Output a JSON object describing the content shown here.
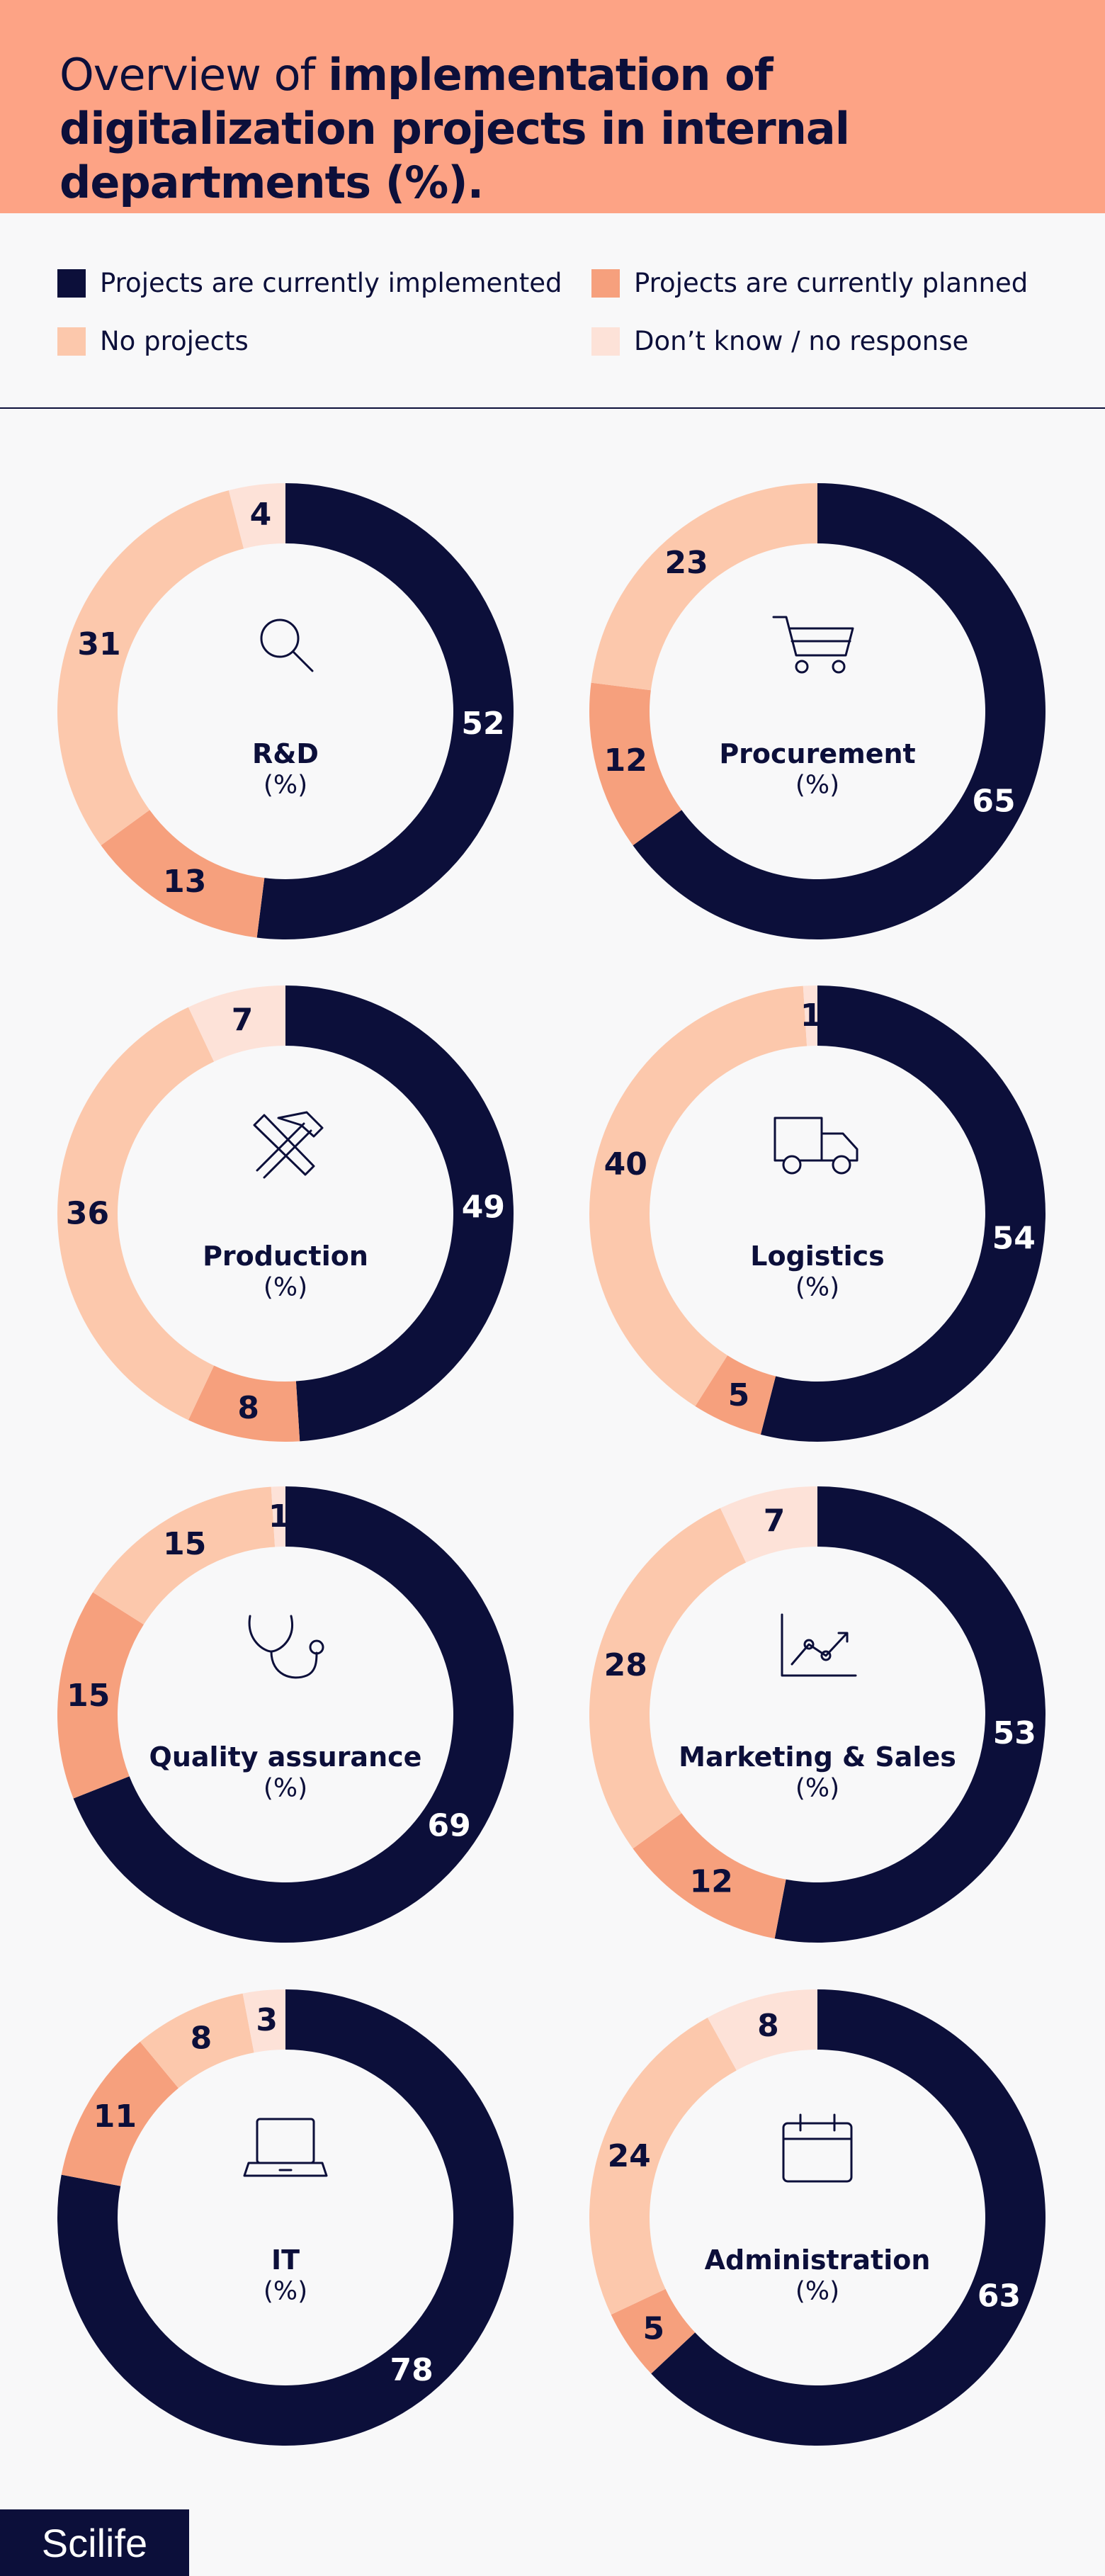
{
  "header": {
    "title_regular": "Overview of",
    "title_bold": "implementation of digitalization projects in internal departments (%)."
  },
  "legend": [
    {
      "name": "Projects are currently implemented",
      "color": "#0c0f3a"
    },
    {
      "name": "Projects are currently planned",
      "color": "#f6a07d"
    },
    {
      "name": "No projects",
      "color": "#fcc8ac"
    },
    {
      "name": "Don’t know / no response",
      "color": "#fde2d8"
    }
  ],
  "chart_data": [
    {
      "type": "pie",
      "title": "R&D",
      "subtitle": "(%)",
      "values": [
        52,
        13,
        31,
        4
      ]
    },
    {
      "type": "pie",
      "title": "Procurement",
      "subtitle": "(%)",
      "values": [
        65,
        12,
        23,
        null
      ]
    },
    {
      "type": "pie",
      "title": "Production",
      "subtitle": "(%)",
      "values": [
        49,
        8,
        36,
        7
      ]
    },
    {
      "type": "pie",
      "title": "Logistics",
      "subtitle": "(%)",
      "values": [
        54,
        5,
        40,
        1
      ]
    },
    {
      "type": "pie",
      "title": "Quality assurance",
      "subtitle": "(%)",
      "values": [
        69,
        15,
        15,
        1
      ]
    },
    {
      "type": "pie",
      "title": "Marketing & Sales",
      "subtitle": "(%)",
      "values": [
        53,
        12,
        28,
        7
      ]
    },
    {
      "type": "pie",
      "title": "IT",
      "subtitle": "(%)",
      "values": [
        78,
        11,
        8,
        3
      ]
    },
    {
      "type": "pie",
      "title": "Administration",
      "subtitle": "(%)",
      "values": [
        63,
        5,
        24,
        8
      ]
    }
  ],
  "footer": {
    "brand": "Scilife"
  }
}
